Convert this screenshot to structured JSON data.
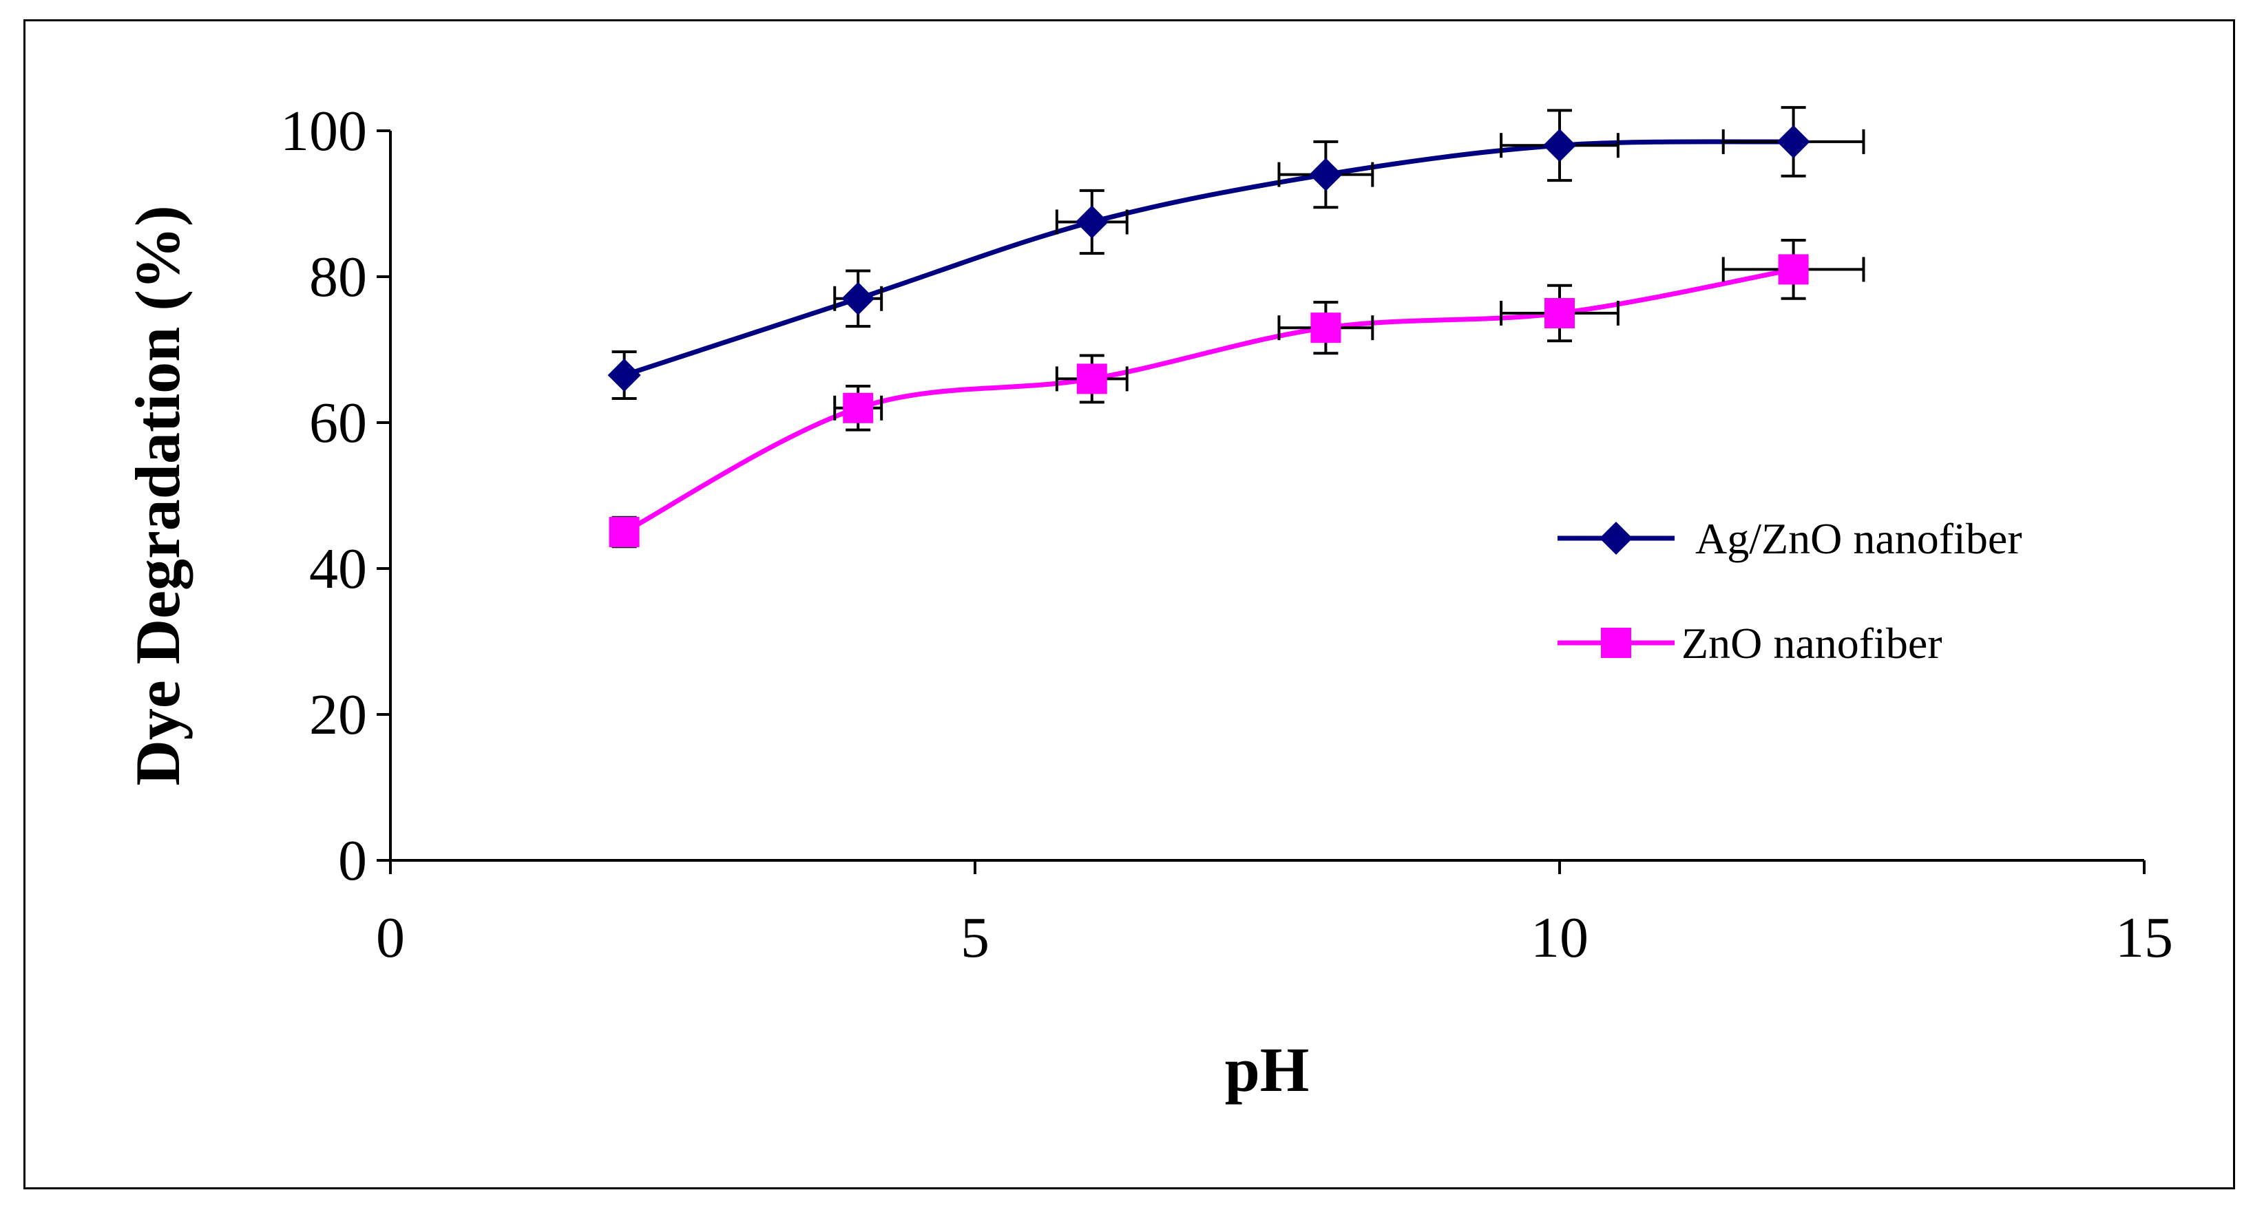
{
  "chart_data": {
    "type": "line",
    "title": "",
    "xlabel": "pH",
    "ylabel": "Dye Degradation (%)",
    "xlim": [
      0,
      15
    ],
    "ylim": [
      0,
      100
    ],
    "x_ticks": [
      0,
      5,
      10,
      15
    ],
    "y_ticks": [
      0,
      20,
      40,
      60,
      80,
      100
    ],
    "grid": false,
    "legend_position": "right",
    "series": [
      {
        "name": "Ag/ZnO nanofiber",
        "color": "#000080",
        "marker": "diamond",
        "smooth": true,
        "x": [
          2,
          4,
          6,
          8,
          10,
          12
        ],
        "y": [
          66.5,
          77,
          87.5,
          94,
          98,
          98.5
        ],
        "y_err": [
          3.2,
          3.8,
          4.3,
          4.5,
          4.8,
          4.7
        ],
        "x_err": [
          0,
          0.2,
          0.3,
          0.4,
          0.5,
          0.6
        ]
      },
      {
        "name": "ZnO nanofiber",
        "color": "#ff00ff",
        "marker": "square",
        "smooth": true,
        "x": [
          2,
          4,
          6,
          8,
          10,
          12
        ],
        "y": [
          45,
          62,
          66,
          73,
          75,
          81
        ],
        "y_err": [
          2.0,
          3.0,
          3.2,
          3.5,
          3.8,
          4.0
        ],
        "x_err": [
          0,
          0.2,
          0.3,
          0.4,
          0.5,
          0.6
        ]
      }
    ]
  }
}
